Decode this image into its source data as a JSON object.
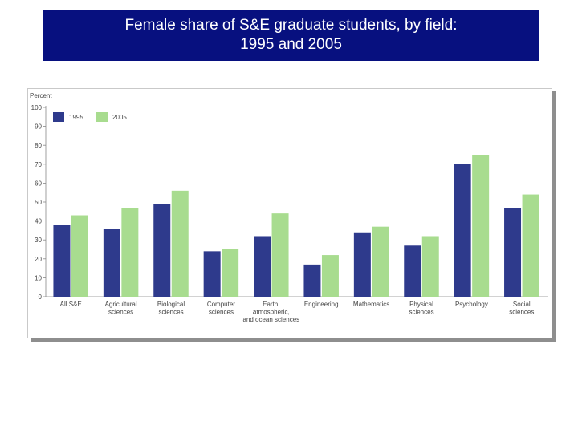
{
  "title": {
    "line1": "Female share of S&E graduate students, by field:",
    "line2": "1995 and 2005"
  },
  "colors": {
    "title_bg": "#07107f",
    "title_text": "#ffffff",
    "series_1995": "#2e3a8c",
    "series_2005": "#a8dc8f"
  },
  "chart_data": {
    "type": "bar",
    "title": "Female share of S&E graduate students, by field: 1995 and 2005",
    "ylabel": "Percent",
    "xlabel": "",
    "ylim": [
      0,
      100
    ],
    "yticks": [
      0,
      10,
      20,
      30,
      40,
      50,
      60,
      70,
      80,
      90,
      100
    ],
    "grid": false,
    "legend_position": "top-left",
    "categories": [
      [
        "All S&E"
      ],
      [
        "Agricultural",
        "sciences"
      ],
      [
        "Biological",
        "sciences"
      ],
      [
        "Computer",
        "sciences"
      ],
      [
        "Earth,",
        "atmospheric,",
        "and ocean sciences"
      ],
      [
        "Engineering"
      ],
      [
        "Mathematics"
      ],
      [
        "Physical",
        "sciences"
      ],
      [
        "Psychology"
      ],
      [
        "Social",
        "sciences"
      ]
    ],
    "series": [
      {
        "name": "1995",
        "color": "#2e3a8c",
        "values": [
          38,
          36,
          49,
          24,
          32,
          17,
          34,
          27,
          70,
          47
        ]
      },
      {
        "name": "2005",
        "color": "#a8dc8f",
        "values": [
          43,
          47,
          56,
          25,
          44,
          22,
          37,
          32,
          75,
          54
        ]
      }
    ]
  }
}
